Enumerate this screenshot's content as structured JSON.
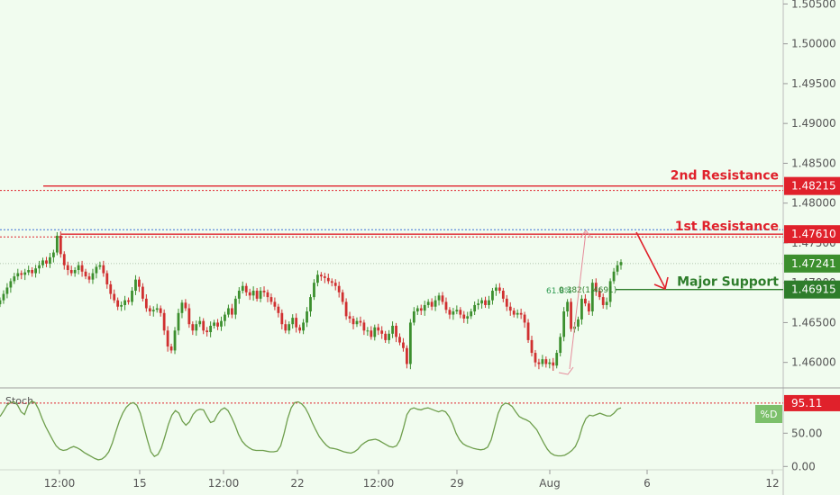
{
  "colors": {
    "background": "#f1fcef",
    "up": "#3c8f2e",
    "down": "#d03030",
    "resistance": "#e0212b",
    "support": "#2e7d2b",
    "stoch": "#6e9e4c",
    "axis_tag_current": "#3c8f2e"
  },
  "chart_data": [
    {
      "type": "candlestick",
      "title": "",
      "ylim": [
        1.4568,
        1.5055
      ],
      "y_ticks": [
        "1.50500",
        "1.50000",
        "1.49500",
        "1.49000",
        "1.48500",
        "1.48000",
        "1.47500",
        "1.47000",
        "1.46500",
        "1.46000"
      ],
      "x_ticks": [
        "12:00",
        "15",
        "12:00",
        "22",
        "12:00",
        "29",
        "Aug",
        "6",
        "12"
      ],
      "levels": [
        {
          "label": "2nd Resistance",
          "value": "1.48215",
          "kind": "resistance"
        },
        {
          "label": "1st Resistance",
          "value": "1.47610",
          "kind": "resistance"
        },
        {
          "label": "Major Support",
          "value": "1.46915",
          "kind": "support"
        }
      ],
      "current_price": "1.47241",
      "fib_annotations": [
        "0.382(1.4691)",
        "61.8%"
      ],
      "series": [
        {
          "values": [
            1.4678,
            1.4686,
            1.4694,
            1.4702,
            1.4708,
            1.4712,
            1.471,
            1.4713,
            1.4716,
            1.4712,
            1.4718,
            1.4722,
            1.4728,
            1.4724,
            1.4732,
            1.4738,
            1.4759,
            1.4736,
            1.4722,
            1.4716,
            1.4712,
            1.4716,
            1.4722,
            1.4714,
            1.4708,
            1.4704,
            1.4712,
            1.472,
            1.4722,
            1.4712,
            1.4698,
            1.4686,
            1.4678,
            1.467,
            1.4672,
            1.4678,
            1.4676,
            1.469,
            1.4704,
            1.4695,
            1.468,
            1.4668,
            1.4664,
            1.4666,
            1.4668,
            1.4662,
            1.464,
            1.462,
            1.4615,
            1.464,
            1.4662,
            1.4675,
            1.4668,
            1.4648,
            1.464,
            1.4648,
            1.4652,
            1.464,
            1.4638,
            1.4646,
            1.465,
            1.4645,
            1.4652,
            1.466,
            1.4668,
            1.466,
            1.468,
            1.469,
            1.4696,
            1.4688,
            1.4684,
            1.469,
            1.468,
            1.469,
            1.4688,
            1.4682,
            1.4676,
            1.467,
            1.4662,
            1.4648,
            1.464,
            1.4648,
            1.4656,
            1.4644,
            1.464,
            1.465,
            1.4664,
            1.4682,
            1.47,
            1.471,
            1.4708,
            1.4706,
            1.4702,
            1.47,
            1.4696,
            1.4688,
            1.4676,
            1.4658,
            1.4655,
            1.4648,
            1.4652,
            1.465,
            1.464,
            1.464,
            1.4632,
            1.4644,
            1.464,
            1.4636,
            1.4628,
            1.4636,
            1.4646,
            1.4632,
            1.4625,
            1.4618,
            1.4598,
            1.465,
            1.4664,
            1.4668,
            1.4665,
            1.4672,
            1.4676,
            1.467,
            1.4678,
            1.4684,
            1.4676,
            1.4666,
            1.466,
            1.4664,
            1.4666,
            1.466,
            1.4655,
            1.4658,
            1.4664,
            1.4672,
            1.4674,
            1.4678,
            1.4672,
            1.4678,
            1.469,
            1.4694,
            1.469,
            1.468,
            1.467,
            1.4665,
            1.466,
            1.4662,
            1.466,
            1.465,
            1.4628,
            1.4612,
            1.46,
            1.4598,
            1.4604,
            1.4598,
            1.46,
            1.4596,
            1.4612,
            1.4632,
            1.4664,
            1.4676,
            1.4642,
            1.4645,
            1.4654,
            1.468,
            1.4674,
            1.4664,
            1.47,
            1.469,
            1.4682,
            1.4672,
            1.4676,
            1.4702,
            1.4714,
            1.4722,
            1.4726
          ]
        }
      ]
    },
    {
      "type": "line",
      "title": "",
      "indicator_label": "Stoch",
      "legend": "%D",
      "ylim": [
        -5,
        118
      ],
      "y_ticks": [
        "0.00",
        "50.00"
      ],
      "threshold": "95.11",
      "series": [
        {
          "name": "%D",
          "values": [
            75,
            83,
            92,
            96,
            97,
            92,
            82,
            78,
            92,
            98,
            96,
            86,
            72,
            60,
            50,
            40,
            31,
            26,
            24,
            25,
            28,
            30,
            28,
            25,
            21,
            18,
            15,
            12,
            10,
            11,
            15,
            22,
            35,
            52,
            68,
            80,
            89,
            94,
            96,
            92,
            80,
            60,
            40,
            22,
            15,
            18,
            28,
            45,
            63,
            77,
            84,
            80,
            68,
            62,
            67,
            78,
            84,
            86,
            85,
            75,
            66,
            68,
            78,
            85,
            88,
            84,
            74,
            62,
            48,
            38,
            32,
            28,
            25,
            24,
            24,
            24,
            23,
            22,
            22,
            23,
            31,
            50,
            72,
            88,
            96,
            97,
            94,
            88,
            78,
            66,
            55,
            45,
            38,
            32,
            28,
            27,
            26,
            24,
            22,
            21,
            20,
            22,
            26,
            32,
            36,
            39,
            40,
            41,
            39,
            36,
            33,
            30,
            29,
            31,
            40,
            58,
            78,
            86,
            88,
            86,
            85,
            87,
            88,
            86,
            84,
            82,
            84,
            82,
            75,
            64,
            50,
            40,
            34,
            31,
            29,
            27,
            26,
            25,
            26,
            29,
            40,
            60,
            80,
            91,
            95,
            94,
            90,
            82,
            75,
            72,
            70,
            67,
            61,
            55,
            45,
            35,
            26,
            20,
            17,
            16,
            16,
            17,
            20,
            24,
            30,
            42,
            60,
            72,
            77,
            76,
            78,
            80,
            78,
            76,
            76,
            80,
            86,
            88
          ]
        }
      ]
    }
  ]
}
